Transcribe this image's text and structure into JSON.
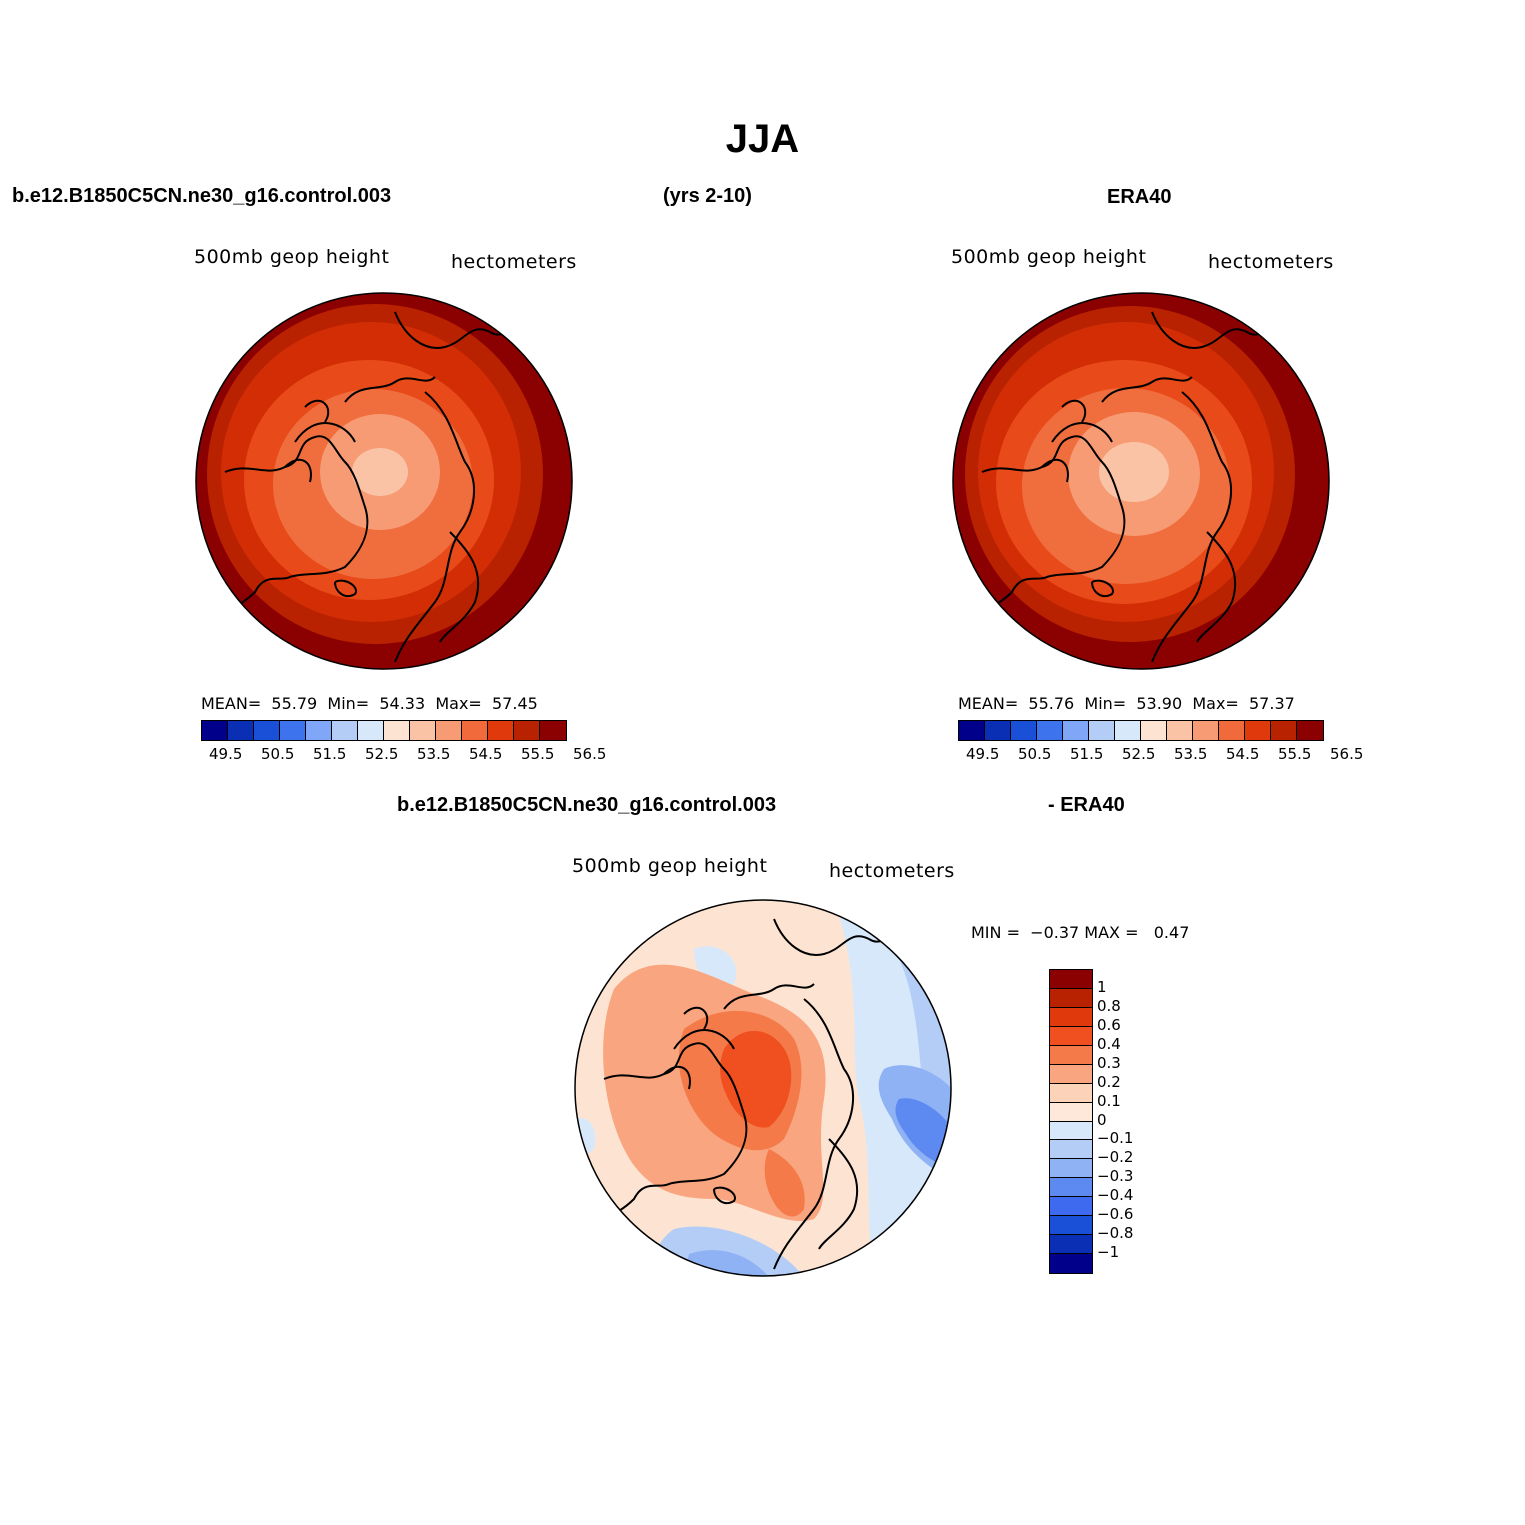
{
  "title": "JJA",
  "header": {
    "case_name": "b.e12.B1850C5CN.ne30_g16.control.003",
    "years": "(yrs 2-10)",
    "obs_name": "ERA40"
  },
  "diff_header": {
    "case_name": "b.e12.B1850C5CN.ne30_g16.control.003",
    "obs_suffix": "- ERA40"
  },
  "panels": {
    "model": {
      "variable": "500mb geop height",
      "units": "hectometers",
      "mean_label": "MEAN=",
      "mean": "55.79",
      "min_label": "Min=",
      "min": "54.33",
      "max_label": "Max=",
      "max": "57.45"
    },
    "obs": {
      "variable": "500mb geop height",
      "units": "hectometers",
      "mean_label": "MEAN=",
      "mean": "55.76",
      "min_label": "Min=",
      "min": "53.90",
      "max_label": "Max=",
      "max": "57.37"
    },
    "diff": {
      "variable": "500mb geop height",
      "units": "hectometers",
      "min_label": "MIN =",
      "min": "−0.37",
      "max_label": "MAX =",
      "max": "0.47"
    }
  },
  "colorbar_abs": {
    "colors": [
      "#00008b",
      "#0a2fb5",
      "#1a4fd8",
      "#3d74ee",
      "#7fa6f7",
      "#b3cdf7",
      "#d8e8fb",
      "#fde4d2",
      "#fbc3a6",
      "#f79b74",
      "#f06a3b",
      "#e03a0c",
      "#b82200",
      "#8b0000"
    ],
    "tick_labels": [
      "49.5",
      "50.5",
      "51.5",
      "52.5",
      "53.5",
      "54.5",
      "55.5",
      "56.5"
    ]
  },
  "colorbar_diff": {
    "colors": [
      "#8b0000",
      "#b82200",
      "#e03a0c",
      "#f05020",
      "#f47a4a",
      "#f9a57f",
      "#fcd2b8",
      "#fde8da",
      "#d8e8fb",
      "#b3cdf7",
      "#8fb2f5",
      "#5c8af0",
      "#3d6aee",
      "#1a4fd8",
      "#0a2fb5",
      "#00008b"
    ],
    "tick_labels": [
      "1",
      "0.8",
      "0.6",
      "0.4",
      "0.3",
      "0.2",
      "0.1",
      "0",
      "−0.1",
      "−0.2",
      "−0.3",
      "−0.4",
      "−0.6",
      "−0.8",
      "−1"
    ]
  }
}
